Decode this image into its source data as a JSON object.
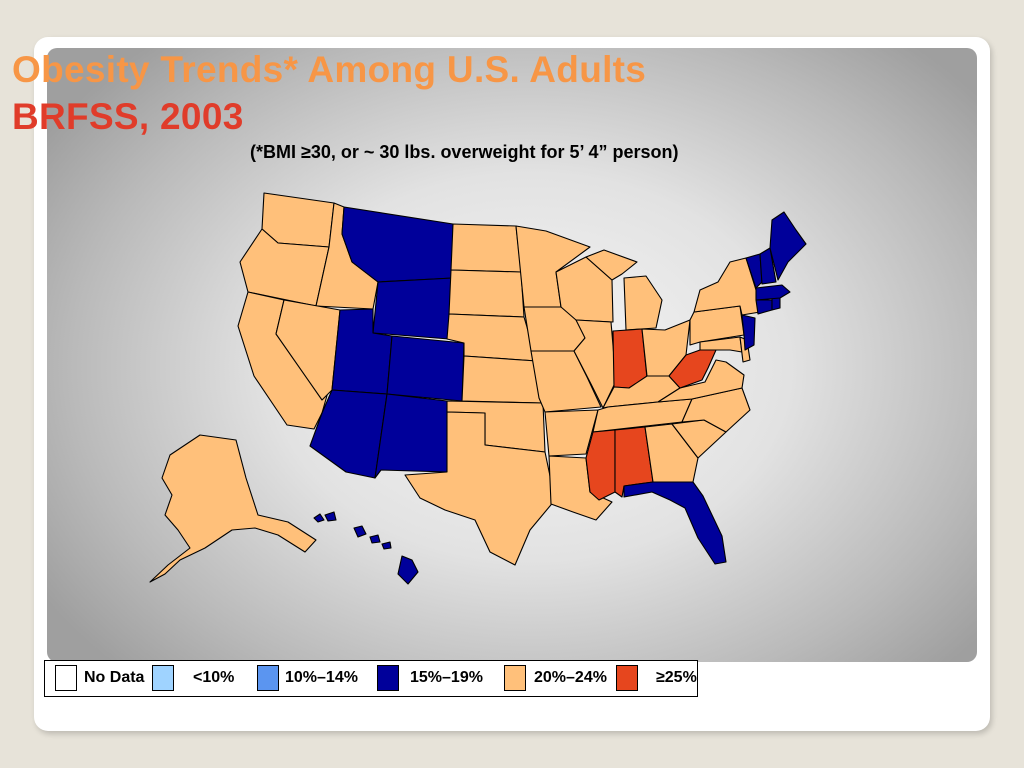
{
  "slide": {
    "title_line1": "Obesity Trends* Among U.S. Adults",
    "title_line2": "BRFSS, 2003",
    "subtitle": "(*BMI ≥30, or ~ 30 lbs. overweight for 5’ 4” person)"
  },
  "colors": {
    "no_data": "#ffffff",
    "lt10": "#9fd3ff",
    "p10_14": "#5b95f0",
    "p15_19": "#00009a",
    "p20_24": "#ffc07a",
    "ge25": "#e6461e"
  },
  "legend": [
    {
      "label": "No Data",
      "color_key": "no_data"
    },
    {
      "label": "<10%",
      "color_key": "lt10"
    },
    {
      "label": "10%–14%",
      "color_key": "p10_14"
    },
    {
      "label": "15%–19%",
      "color_key": "p15_19"
    },
    {
      "label": "20%–24%",
      "color_key": "p20_24"
    },
    {
      "label": "≥25%",
      "color_key": "ge25"
    }
  ],
  "states": {
    "WA": "p20_24",
    "OR": "p20_24",
    "CA": "p20_24",
    "ID": "p20_24",
    "NV": "p20_24",
    "MT": "p15_19",
    "WY": "p15_19",
    "UT": "p15_19",
    "CO": "p15_19",
    "AZ": "p15_19",
    "NM": "p15_19",
    "ND": "p20_24",
    "SD": "p20_24",
    "NE": "p20_24",
    "KS": "p20_24",
    "OK": "p20_24",
    "TX": "p20_24",
    "MN": "p20_24",
    "IA": "p20_24",
    "MO": "p20_24",
    "AR": "p20_24",
    "LA": "p20_24",
    "WI": "p20_24",
    "IL": "p20_24",
    "MI": "p20_24",
    "IN": "ge25",
    "OH": "p20_24",
    "KY": "p20_24",
    "TN": "p20_24",
    "MS": "ge25",
    "AL": "ge25",
    "GA": "p20_24",
    "FL": "p15_19",
    "SC": "p20_24",
    "NC": "p20_24",
    "VA": "p20_24",
    "WV": "ge25",
    "MD": "p20_24",
    "DE": "p20_24",
    "PA": "p20_24",
    "NY": "p20_24",
    "NJ": "p15_19",
    "CT": "p15_19",
    "RI": "p15_19",
    "MA": "p15_19",
    "VT": "p15_19",
    "NH": "p15_19",
    "ME": "p15_19",
    "AK": "p20_24",
    "HI": "p15_19"
  }
}
